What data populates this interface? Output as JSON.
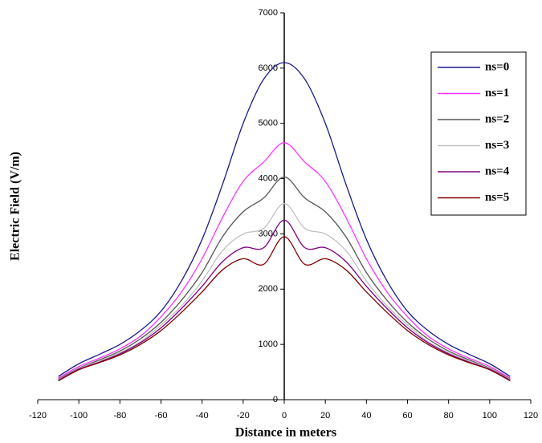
{
  "chart_data": {
    "type": "line",
    "xlabel": "Distance in meters",
    "ylabel": "Electric Field (V/m)",
    "x": [
      -110,
      -100,
      -90,
      -80,
      -70,
      -60,
      -50,
      -40,
      -30,
      -20,
      -10,
      0,
      10,
      20,
      30,
      40,
      50,
      60,
      70,
      80,
      90,
      100,
      110
    ],
    "series": [
      {
        "name": "ns=0",
        "color": "#1a1a8c",
        "values": [
          420,
          650,
          820,
          1000,
          1250,
          1600,
          2150,
          2900,
          3900,
          5000,
          5800,
          6100,
          5800,
          5000,
          3900,
          2900,
          2150,
          1600,
          1250,
          1000,
          820,
          650,
          420
        ]
      },
      {
        "name": "ns=1",
        "color": "#ff33ff",
        "values": [
          390,
          600,
          750,
          920,
          1150,
          1500,
          1950,
          2550,
          3300,
          3950,
          4300,
          4650,
          4300,
          3950,
          3300,
          2550,
          1950,
          1500,
          1150,
          920,
          750,
          600,
          390
        ]
      },
      {
        "name": "ns=2",
        "color": "#555555",
        "values": [
          370,
          570,
          720,
          880,
          1100,
          1400,
          1800,
          2300,
          2950,
          3400,
          3650,
          4030,
          3650,
          3400,
          2950,
          2300,
          1800,
          1400,
          1100,
          880,
          720,
          570,
          370
        ]
      },
      {
        "name": "ns=3",
        "color": "#c0c0c0",
        "values": [
          360,
          560,
          700,
          850,
          1050,
          1350,
          1700,
          2150,
          2700,
          3000,
          3100,
          3550,
          3100,
          3000,
          2700,
          2150,
          1700,
          1350,
          1050,
          850,
          700,
          560,
          360
        ]
      },
      {
        "name": "ns=4",
        "color": "#800080",
        "values": [
          350,
          550,
          680,
          830,
          1030,
          1300,
          1650,
          2050,
          2500,
          2750,
          2750,
          3250,
          2750,
          2750,
          2500,
          2050,
          1650,
          1300,
          1030,
          830,
          680,
          550,
          350
        ]
      },
      {
        "name": "ns=5",
        "color": "#800000",
        "values": [
          340,
          540,
          670,
          810,
          1000,
          1250,
          1580,
          1950,
          2350,
          2550,
          2450,
          2950,
          2450,
          2550,
          2350,
          1950,
          1580,
          1250,
          1000,
          810,
          670,
          540,
          340
        ]
      }
    ],
    "xlim": [
      -120,
      120
    ],
    "xticks": [
      -120,
      -100,
      -80,
      -60,
      -40,
      -20,
      0,
      20,
      40,
      60,
      80,
      100,
      120
    ],
    "ylim": [
      0,
      7000
    ],
    "yticks": [
      0,
      1000,
      2000,
      3000,
      4000,
      5000,
      6000,
      7000
    ]
  }
}
